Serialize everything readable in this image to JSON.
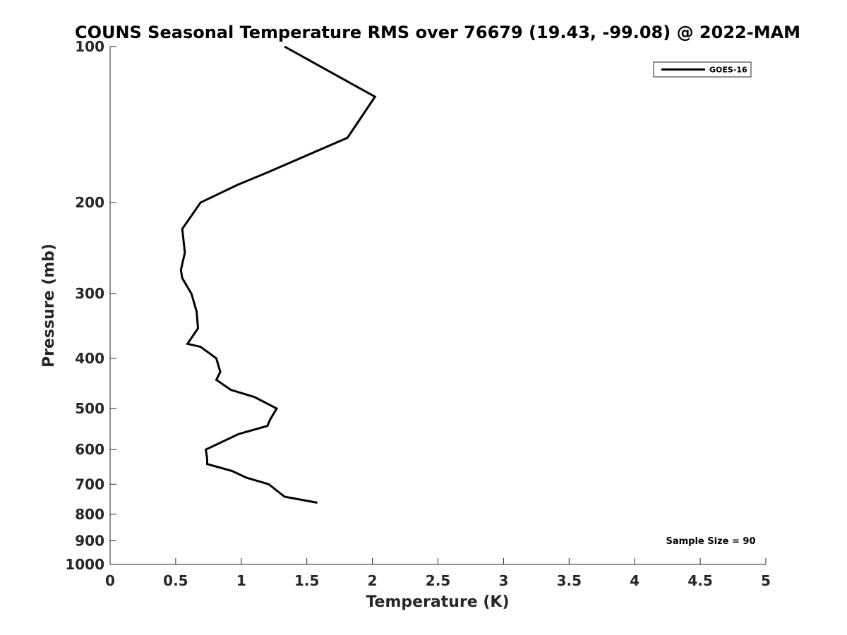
{
  "chart_data": {
    "type": "line",
    "title": "COUNS Seasonal Temperature RMS over 76679 (19.43, -99.08) @ 2022-MAM",
    "xlabel": "Temperature (K)",
    "ylabel": "Pressure (mb)",
    "xlim": [
      0,
      5
    ],
    "ylim": [
      100,
      1000
    ],
    "y_scale": "log",
    "y_reversed": true,
    "x_ticks": [
      0,
      0.5,
      1,
      1.5,
      2,
      2.5,
      3,
      3.5,
      4,
      4.5,
      5
    ],
    "x_tick_labels": [
      "0",
      "0.5",
      "1",
      "1.5",
      "2",
      "2.5",
      "3",
      "3.5",
      "4",
      "4.5",
      "5"
    ],
    "y_ticks": [
      100,
      200,
      300,
      400,
      500,
      600,
      700,
      800,
      900,
      1000
    ],
    "y_tick_labels": [
      "100",
      "200",
      "300",
      "400",
      "500",
      "600",
      "700",
      "800",
      "900",
      "1000"
    ],
    "grid": false,
    "legend_position": "top-right",
    "annotation": "Sample Size = 90",
    "series": [
      {
        "name": "GOES-16",
        "color": "#000000",
        "points": [
          {
            "x": 1.33,
            "y": 100
          },
          {
            "x": 2.02,
            "y": 125
          },
          {
            "x": 1.81,
            "y": 150
          },
          {
            "x": 1.2,
            "y": 175
          },
          {
            "x": 0.97,
            "y": 185
          },
          {
            "x": 0.69,
            "y": 200
          },
          {
            "x": 0.55,
            "y": 225
          },
          {
            "x": 0.57,
            "y": 250
          },
          {
            "x": 0.54,
            "y": 270
          },
          {
            "x": 0.55,
            "y": 280
          },
          {
            "x": 0.62,
            "y": 300
          },
          {
            "x": 0.66,
            "y": 325
          },
          {
            "x": 0.67,
            "y": 350
          },
          {
            "x": 0.59,
            "y": 375
          },
          {
            "x": 0.69,
            "y": 380
          },
          {
            "x": 0.81,
            "y": 400
          },
          {
            "x": 0.84,
            "y": 425
          },
          {
            "x": 0.81,
            "y": 440
          },
          {
            "x": 0.92,
            "y": 460
          },
          {
            "x": 1.1,
            "y": 475
          },
          {
            "x": 1.27,
            "y": 500
          },
          {
            "x": 1.22,
            "y": 525
          },
          {
            "x": 1.2,
            "y": 540
          },
          {
            "x": 0.98,
            "y": 560
          },
          {
            "x": 0.73,
            "y": 600
          },
          {
            "x": 0.74,
            "y": 625
          },
          {
            "x": 0.74,
            "y": 640
          },
          {
            "x": 0.93,
            "y": 660
          },
          {
            "x": 1.04,
            "y": 680
          },
          {
            "x": 1.21,
            "y": 700
          },
          {
            "x": 1.33,
            "y": 740
          },
          {
            "x": 1.58,
            "y": 760
          }
        ]
      }
    ]
  }
}
